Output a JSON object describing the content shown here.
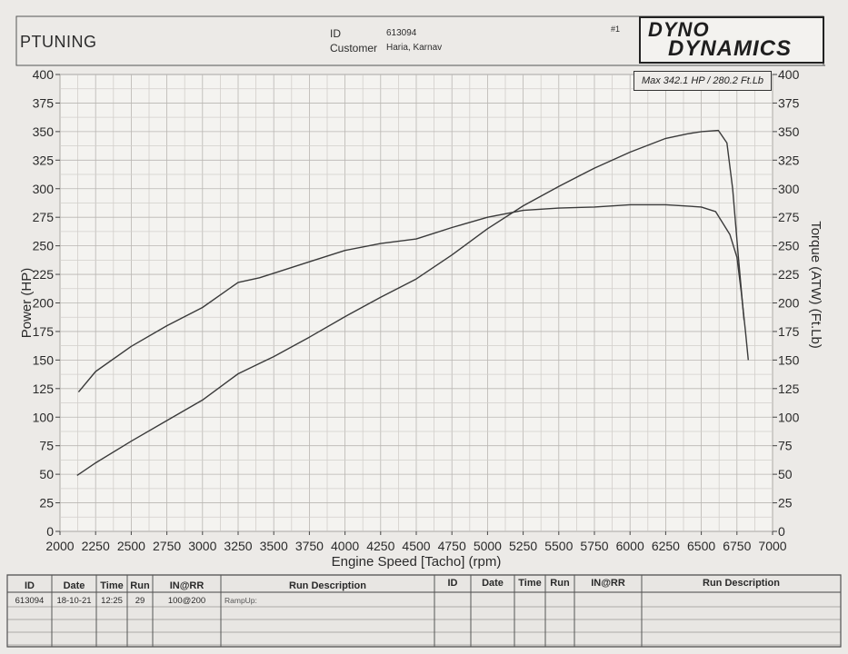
{
  "header": {
    "company": "PTUNING",
    "id_label": "ID",
    "id_value": "613094",
    "customer_label": "Customer",
    "customer_value": "Haria, Karnav",
    "run_number": "#1",
    "logo_line1": "DYNO",
    "logo_line2": "DYNAMICS",
    "max_summary": "Max 342.1 HP  / 280.2 Ft.Lb"
  },
  "chart_data": {
    "type": "line",
    "xlabel": "Engine Speed [Tacho] (rpm)",
    "ylabel": "Power (HP)",
    "y2label": "Torque (ATW) (Ft.Lb)",
    "xlim": [
      2000,
      7000
    ],
    "ylim": [
      0,
      400
    ],
    "y2lim": [
      0,
      400
    ],
    "x_ticks": [
      2000,
      2250,
      2500,
      2750,
      3000,
      3250,
      3500,
      3750,
      4000,
      4250,
      4500,
      4750,
      5000,
      5250,
      5500,
      5750,
      6000,
      6250,
      6500,
      6750,
      7000
    ],
    "y_ticks": [
      0,
      25,
      50,
      75,
      100,
      125,
      150,
      175,
      200,
      225,
      250,
      275,
      300,
      325,
      350,
      375,
      400
    ],
    "y2_ticks": [
      0,
      25,
      50,
      75,
      100,
      125,
      150,
      175,
      200,
      225,
      250,
      275,
      300,
      325,
      350,
      375,
      400
    ],
    "grid": true,
    "series": [
      {
        "axis": "left",
        "x": [
          2120,
          2250,
          2500,
          2750,
          3000,
          3250,
          3400,
          3500,
          3750,
          4000,
          4250,
          4500,
          4750,
          5000,
          5250,
          5500,
          5750,
          6000,
          6250,
          6400,
          6500,
          6620,
          6680,
          6720,
          6760,
          6800
        ],
        "values": [
          49,
          60,
          79,
          97,
          115,
          138,
          147,
          153,
          170,
          188,
          205,
          221,
          242,
          265,
          285,
          302,
          318,
          332,
          344,
          348,
          350,
          351,
          340,
          300,
          240,
          185
        ]
      },
      {
        "axis": "right",
        "x": [
          2130,
          2250,
          2500,
          2750,
          3000,
          3250,
          3400,
          3500,
          3750,
          4000,
          4250,
          4500,
          4750,
          5000,
          5250,
          5500,
          5750,
          6000,
          6250,
          6500,
          6600,
          6700,
          6750,
          6780,
          6810,
          6830
        ],
        "values": [
          122,
          140,
          162,
          180,
          196,
          218,
          222,
          226,
          236,
          246,
          252,
          256,
          266,
          275,
          281,
          283,
          284,
          286,
          286,
          284,
          280,
          260,
          240,
          210,
          175,
          150
        ]
      }
    ]
  },
  "table": {
    "headers_left": [
      "ID",
      "Date",
      "Time",
      "Run",
      "IN@RR",
      "Run Description"
    ],
    "headers_right": [
      "ID",
      "Date",
      "Time",
      "Run",
      "IN@RR",
      "Run Description"
    ],
    "row": [
      "613094",
      "18-10-21",
      "12:25",
      "29",
      "100@200",
      "RampUp:"
    ]
  }
}
